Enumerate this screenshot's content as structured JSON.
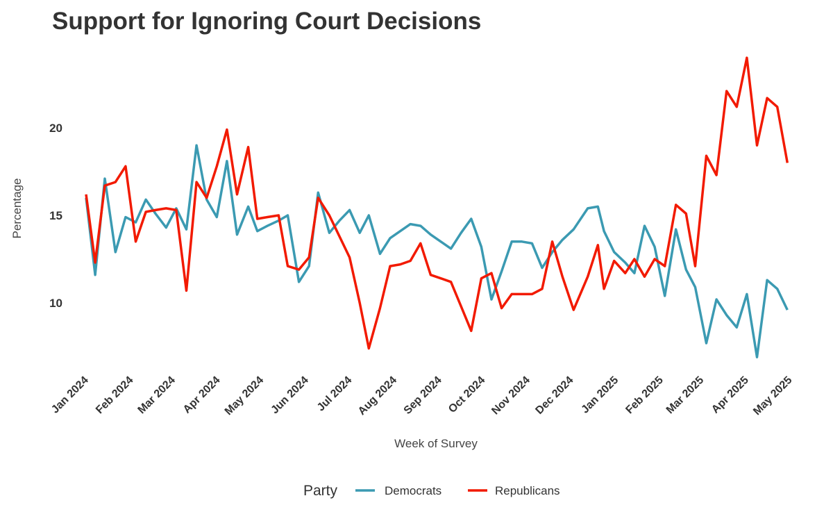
{
  "chart_data": {
    "type": "line",
    "title": "Support for Ignoring Court Decisions",
    "xlabel": "Week of Survey",
    "ylabel": "Percentage",
    "x_unit": "weeks since 2024-01-01",
    "ylim": [
      6.6,
      24.2
    ],
    "yticks": [
      10,
      15,
      20
    ],
    "ytick_labels": [
      "10",
      "15",
      "20"
    ],
    "xticks": [
      {
        "label": "Jan 2024",
        "day": 0
      },
      {
        "label": "Feb 2024",
        "day": 31
      },
      {
        "label": "Mar 2024",
        "day": 60
      },
      {
        "label": "Apr 2024",
        "day": 91
      },
      {
        "label": "May 2024",
        "day": 121
      },
      {
        "label": "Jun 2024",
        "day": 152
      },
      {
        "label": "Jul 2024",
        "day": 182
      },
      {
        "label": "Aug 2024",
        "day": 213
      },
      {
        "label": "Sep 2024",
        "day": 244
      },
      {
        "label": "Oct 2024",
        "day": 274
      },
      {
        "label": "Nov 2024",
        "day": 305
      },
      {
        "label": "Dec 2024",
        "day": 335
      },
      {
        "label": "Jan 2025",
        "day": 366
      },
      {
        "label": "Feb 2025",
        "day": 397
      },
      {
        "label": "Mar 2025",
        "day": 425
      },
      {
        "label": "Apr 2025",
        "day": 456
      },
      {
        "label": "May 2025",
        "day": 486
      }
    ],
    "grid": false,
    "legend": {
      "title": "Party",
      "placement": "bottom"
    },
    "x": [
      0,
      0.9,
      1.85,
      2.9,
      3.9,
      4.9,
      5.9,
      6.85,
      7.9,
      8.9,
      9.9,
      10.9,
      11.9,
      12.9,
      13.9,
      14.9,
      16.0,
      16.9,
      17.9,
      19.0,
      19.9,
      21.0,
      22.0,
      22.9,
      24.0,
      25.0,
      26.0,
      27.0,
      27.9,
      29.0,
      30.0,
      31.0,
      32.0,
      33.0,
      34.0,
      35.0,
      36.0,
      37.0,
      38.0,
      39.0,
      40.0,
      41.0,
      42.0,
      43.0,
      44.0,
      45.0,
      46.0,
      47.0,
      48.1,
      49.5,
      50.5,
      51.1,
      52.1,
      53.2,
      54.1,
      55.1,
      56.1,
      57.1,
      58.2,
      59.2,
      60.1,
      61.2,
      62.2,
      63.2,
      64.2,
      65.2,
      66.2,
      67.2,
      68.2,
      69.2
    ],
    "series": [
      {
        "name": "Democrats",
        "color": "#3B9AB2",
        "values": [
          16.0,
          11.6,
          17.1,
          12.9,
          14.9,
          14.6,
          15.9,
          15.1,
          14.3,
          15.4,
          14.2,
          19.0,
          15.9,
          14.9,
          18.1,
          13.9,
          15.5,
          14.1,
          14.4,
          14.7,
          15.0,
          11.2,
          12.1,
          16.3,
          14.0,
          14.7,
          15.3,
          14.0,
          15.0,
          12.8,
          13.7,
          14.1,
          14.5,
          14.4,
          13.9,
          13.5,
          13.1,
          14.0,
          14.8,
          13.2,
          10.2,
          11.8,
          13.5,
          13.5,
          13.4,
          12.0,
          12.9,
          13.6,
          14.2,
          15.4,
          15.5,
          14.1,
          12.9,
          12.3,
          11.7,
          14.4,
          13.2,
          10.4,
          14.2,
          11.9,
          10.9,
          7.7,
          10.2,
          9.3,
          8.6,
          10.5,
          6.9,
          11.3,
          10.8,
          9.6
        ]
      },
      {
        "name": "Republicans",
        "color": "#F21A00",
        "values": [
          16.2,
          12.3,
          16.7,
          16.9,
          17.8,
          13.5,
          15.2,
          15.3,
          15.4,
          15.3,
          10.7,
          16.9,
          16.0,
          17.8,
          19.9,
          16.2,
          18.9,
          14.8,
          14.9,
          15.0,
          12.1,
          11.9,
          12.6,
          16.0,
          15.0,
          13.8,
          12.6,
          10.0,
          7.4,
          9.7,
          12.1,
          12.2,
          12.4,
          13.4,
          11.6,
          11.4,
          11.2,
          9.8,
          8.4,
          11.4,
          11.7,
          9.7,
          10.5,
          10.5,
          10.5,
          10.8,
          13.5,
          11.5,
          9.6,
          11.5,
          13.3,
          10.8,
          12.4,
          11.7,
          12.5,
          11.5,
          12.5,
          12.1,
          15.6,
          15.1,
          12.1,
          18.4,
          17.3,
          22.1,
          21.2,
          24.0,
          19.0,
          21.7,
          21.2,
          18.0
        ]
      }
    ]
  }
}
